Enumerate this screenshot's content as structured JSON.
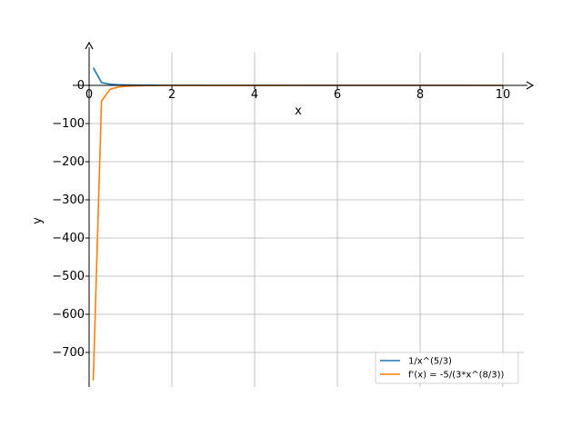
{
  "chart_data": {
    "type": "line",
    "xlabel": "x",
    "ylabel": "y",
    "xlim": [
      0,
      10.5
    ],
    "ylim": [
      -790,
      90
    ],
    "xticks": [
      0,
      2,
      4,
      6,
      8,
      10
    ],
    "yticks": [
      0,
      -100,
      -200,
      -300,
      -400,
      -500,
      -600,
      -700
    ],
    "xtick_labels": [
      "0",
      "2",
      "4",
      "6",
      "8",
      "10"
    ],
    "ytick_labels": [
      "0",
      "−100",
      "−200",
      "−300",
      "−400",
      "−500",
      "−600",
      "−700"
    ],
    "grid": true,
    "legend_position": "lower-right",
    "series": [
      {
        "name": "1/x^(5/3)",
        "color": "#1f77b4",
        "x": [
          0.1,
          0.3,
          0.5,
          0.7,
          0.9,
          1.1,
          1.5,
          2,
          3,
          4,
          5,
          6,
          7,
          8,
          9,
          10
        ],
        "y": [
          46.4,
          7.4,
          3.2,
          1.8,
          1.2,
          0.85,
          0.51,
          0.31,
          0.16,
          0.1,
          0.07,
          0.05,
          0.04,
          0.03,
          0.03,
          0.02
        ]
      },
      {
        "name": "f'(x) = -5/(3*x^(8/3))",
        "color": "#ff7f0e",
        "x": [
          0.1,
          0.3,
          0.5,
          0.7,
          0.9,
          1.1,
          1.5,
          2,
          3,
          4,
          5,
          6,
          7,
          8,
          9,
          10
        ],
        "y": [
          -773.6,
          -41.1,
          -10.6,
          -4.3,
          -2.2,
          -1.3,
          -0.57,
          -0.26,
          -0.09,
          -0.04,
          -0.02,
          -0.01,
          -0.01,
          -0.0,
          -0.0,
          -0.0
        ]
      }
    ]
  }
}
